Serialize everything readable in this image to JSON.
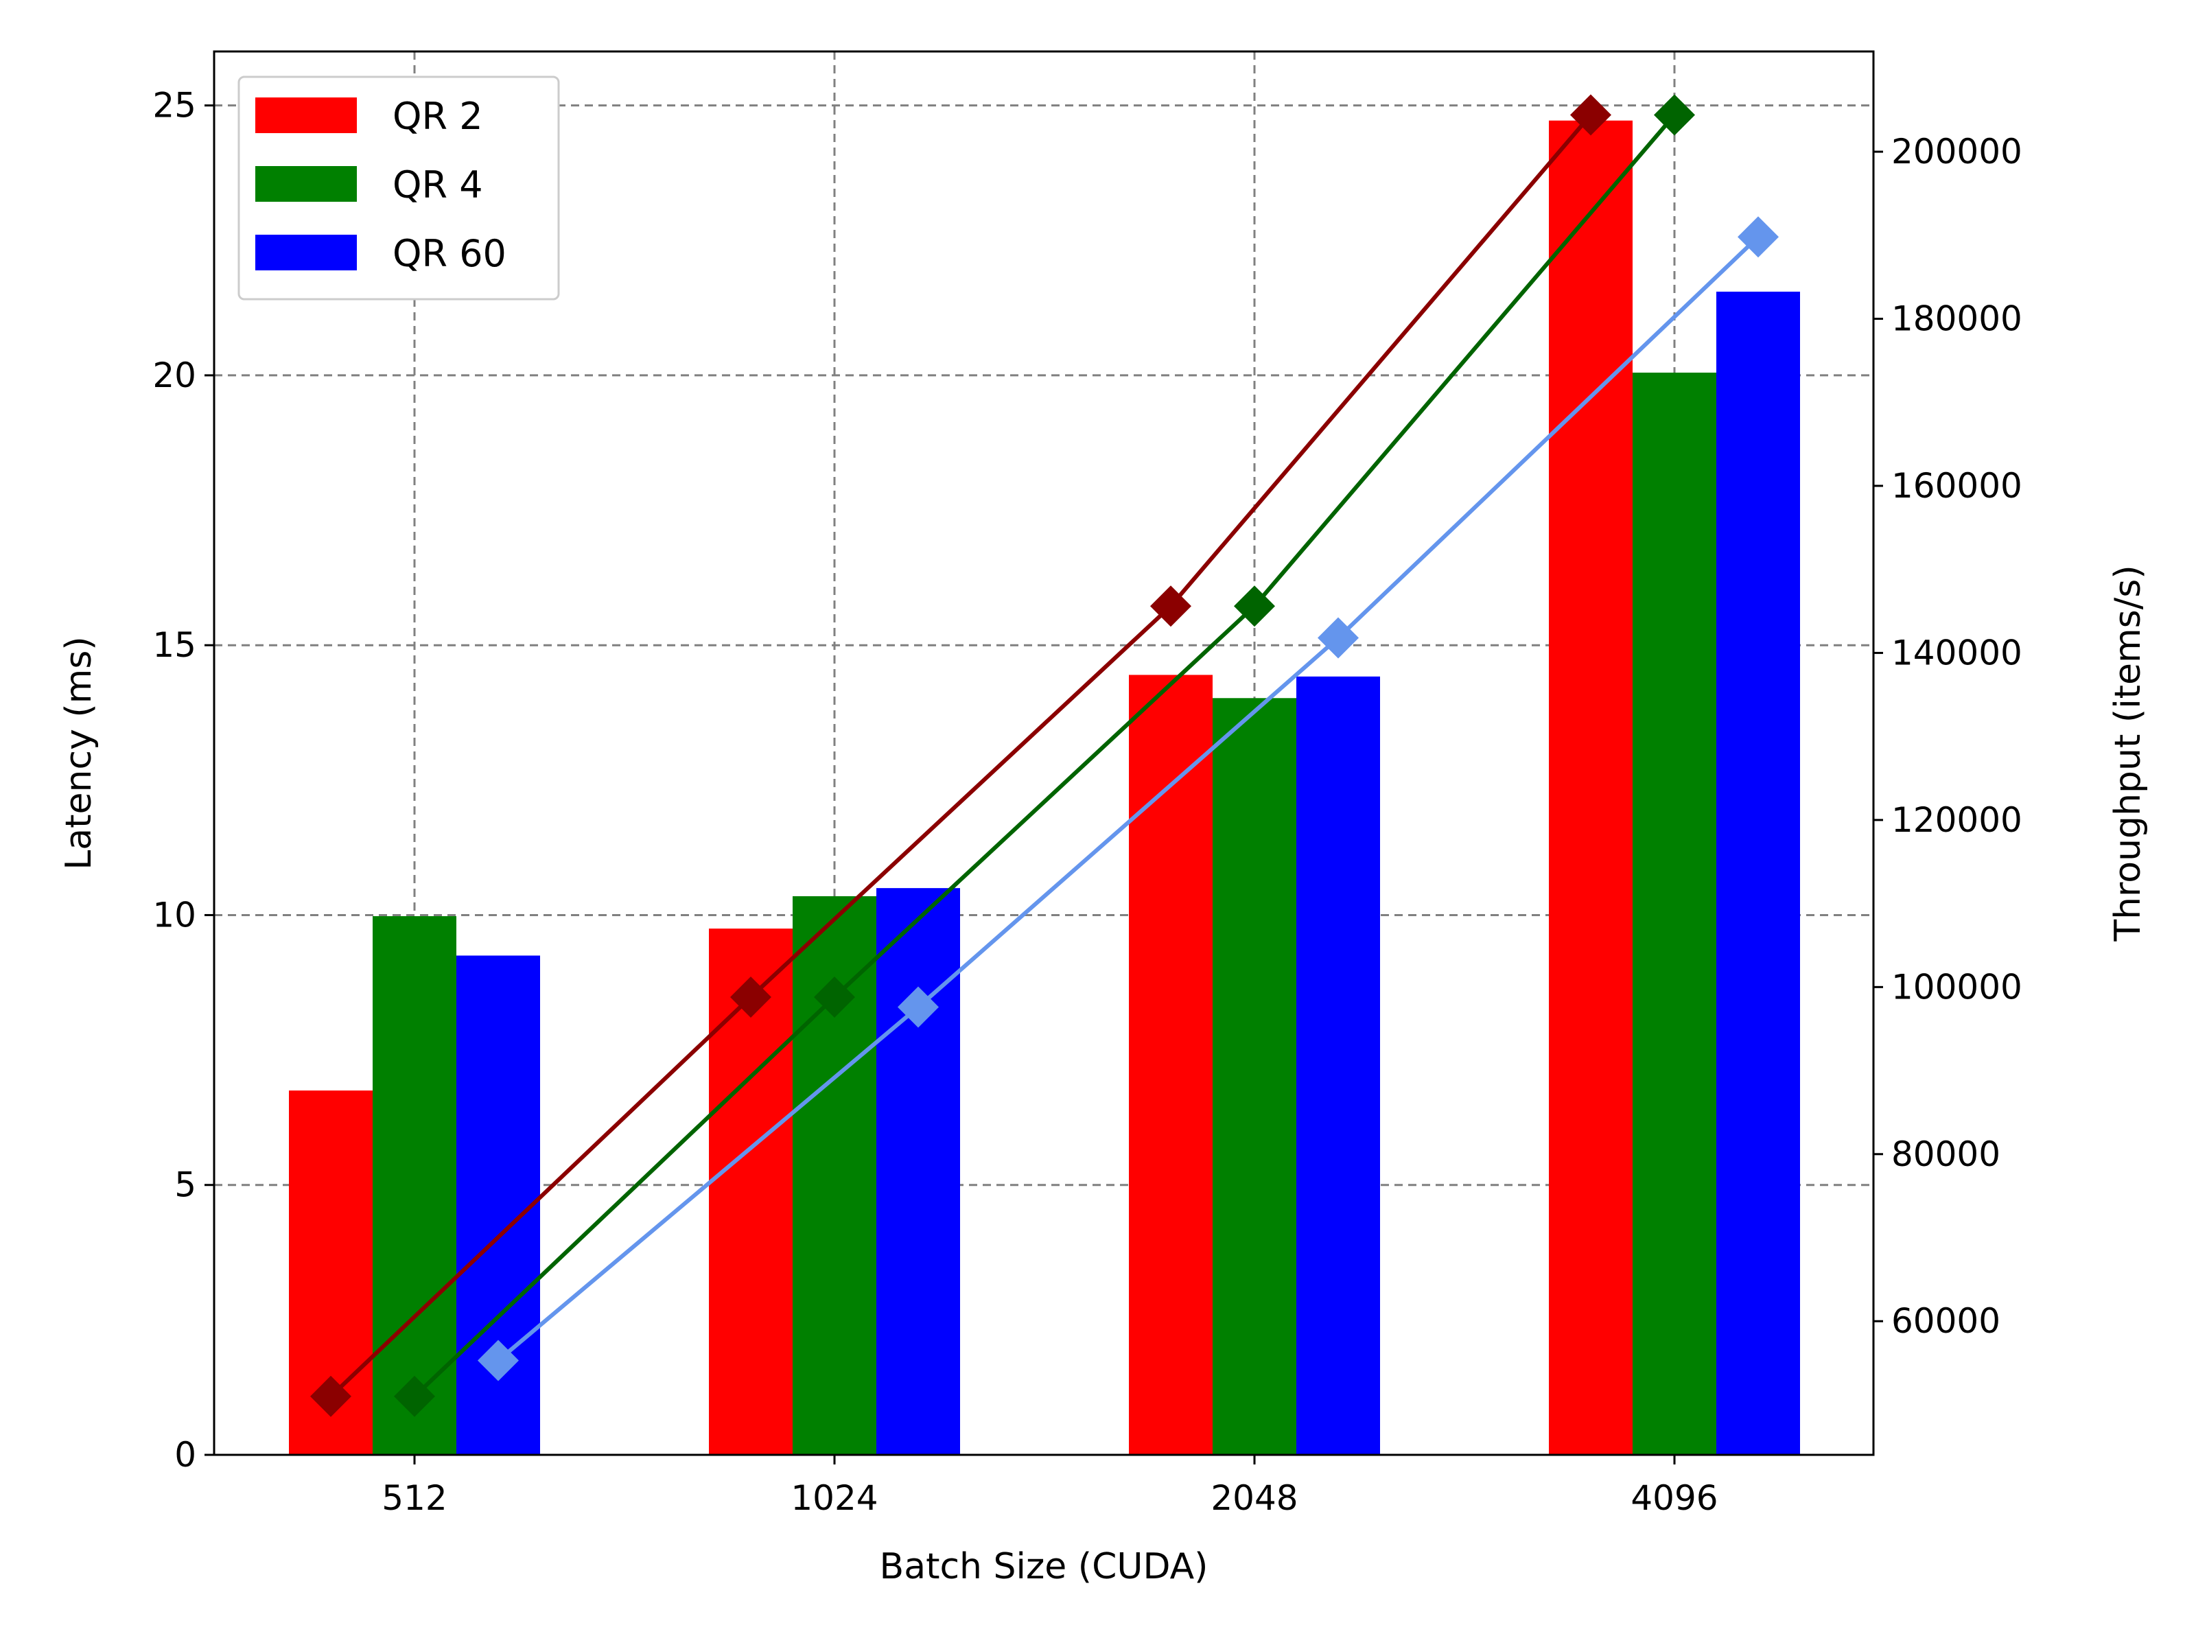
{
  "chart_data": {
    "type": "bar",
    "categories": [
      "512",
      "1024",
      "2048",
      "4096"
    ],
    "xlabel": "Batch Size (CUDA)",
    "ylabel": "Latency (ms)",
    "y2label": "Throughput (items/s)",
    "ylim": [
      0,
      26
    ],
    "y2lim": [
      44000,
      212000
    ],
    "yticks": [
      0,
      5,
      10,
      15,
      20,
      25
    ],
    "y2ticks": [
      60000,
      80000,
      100000,
      120000,
      140000,
      160000,
      180000,
      200000
    ],
    "grid": true,
    "legend_position": "top-left",
    "series": [
      {
        "name": "QR 2",
        "kind": "bar",
        "axis": "left",
        "color": "#ff0000",
        "values": [
          6.75,
          9.75,
          14.45,
          24.72
        ]
      },
      {
        "name": "QR 4",
        "kind": "bar",
        "axis": "left",
        "color": "#008000",
        "values": [
          9.98,
          10.35,
          14.02,
          20.05
        ]
      },
      {
        "name": "QR 60",
        "kind": "bar",
        "axis": "left",
        "color": "#0000ff",
        "values": [
          9.25,
          10.5,
          14.42,
          21.55
        ]
      }
    ],
    "lines": [
      {
        "axis": "right",
        "color": "#8b0000",
        "marker": "diamond",
        "offset": -1,
        "values": [
          51000,
          98800,
          145600,
          204400
        ]
      },
      {
        "axis": "right",
        "color": "#006400",
        "marker": "diamond",
        "offset": 0,
        "values": [
          51000,
          98800,
          145600,
          204400
        ]
      },
      {
        "axis": "right",
        "color": "#6495ed",
        "marker": "diamond",
        "offset": 1,
        "values": [
          55300,
          97600,
          141800,
          189800
        ]
      }
    ]
  }
}
